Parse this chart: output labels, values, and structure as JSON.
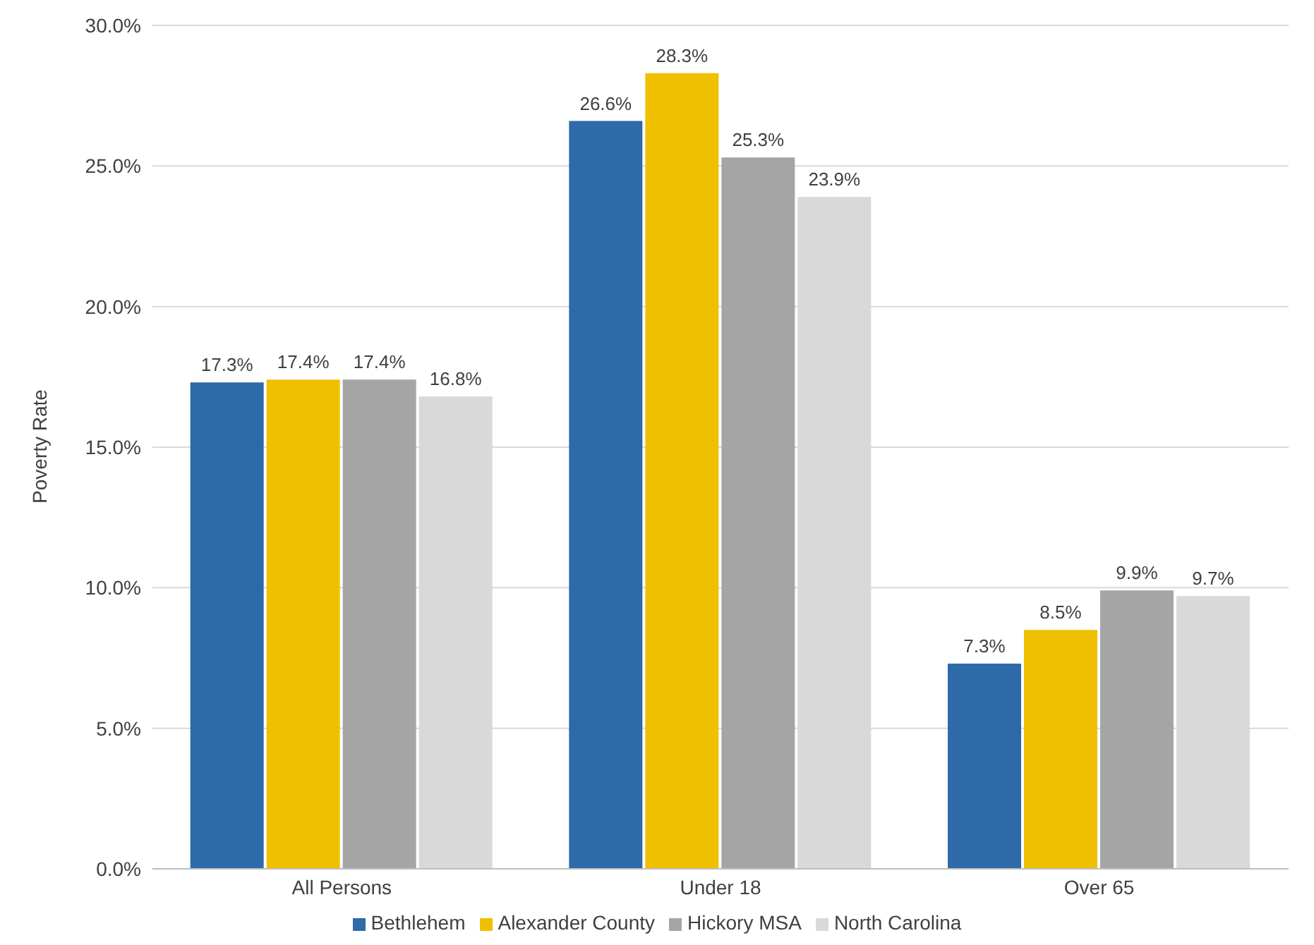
{
  "chart_data": {
    "type": "bar",
    "ylabel": "Poverty Rate",
    "categories": [
      "All Persons",
      "Under 18",
      "Over 65"
    ],
    "series": [
      {
        "name": "Bethlehem",
        "color": "#2e6aa8",
        "values": [
          17.3,
          26.6,
          7.3
        ],
        "value_labels": [
          "17.3%",
          "26.6%",
          "7.3%"
        ]
      },
      {
        "name": "Alexander County",
        "color": "#f0c000",
        "values": [
          17.4,
          28.3,
          8.5
        ],
        "value_labels": [
          "17.4%",
          "28.3%",
          "8.5%"
        ]
      },
      {
        "name": "Hickory MSA",
        "color": "#a5a5a5",
        "values": [
          17.4,
          25.3,
          9.9
        ],
        "value_labels": [
          "17.4%",
          "25.3%",
          "9.9%"
        ]
      },
      {
        "name": "North Carolina",
        "color": "#d9d9d9",
        "values": [
          16.8,
          23.9,
          9.7
        ],
        "value_labels": [
          "16.8%",
          "23.9%",
          "9.7%"
        ]
      }
    ],
    "ylim": [
      0,
      30
    ],
    "yticks": [
      {
        "value": 0,
        "label": "0.0%"
      },
      {
        "value": 5,
        "label": "5.0%"
      },
      {
        "value": 10,
        "label": "10.0%"
      },
      {
        "value": 15,
        "label": "15.0%"
      },
      {
        "value": 20,
        "label": "20.0%"
      },
      {
        "value": 25,
        "label": "25.0%"
      },
      {
        "value": 30,
        "label": "30.0%"
      }
    ],
    "grid": "y",
    "legend": "bottom"
  }
}
